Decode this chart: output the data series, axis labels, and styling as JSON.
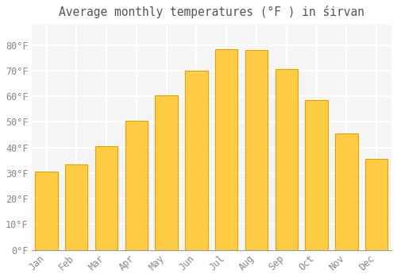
{
  "title": "Average monthly temperatures (°F ) in śirvan",
  "months": [
    "Jan",
    "Feb",
    "Mar",
    "Apr",
    "May",
    "Jun",
    "Jul",
    "Aug",
    "Sep",
    "Oct",
    "Nov",
    "Dec"
  ],
  "values": [
    30.5,
    33.5,
    40.5,
    50.5,
    60.5,
    70,
    78.5,
    78,
    70.5,
    58.5,
    45.5,
    35.5
  ],
  "bar_color_top": "#FFB300",
  "bar_color_bottom": "#FFCC44",
  "bar_edge_color": "#E8A000",
  "background_color": "#FFFFFF",
  "plot_bg_color": "#F5F5F5",
  "grid_color": "#FFFFFF",
  "text_color": "#888888",
  "title_color": "#555555",
  "ylim": [
    0,
    88
  ],
  "yticks": [
    0,
    10,
    20,
    30,
    40,
    50,
    60,
    70,
    80
  ],
  "ytick_labels": [
    "0°F",
    "10°F",
    "20°F",
    "30°F",
    "40°F",
    "50°F",
    "60°F",
    "70°F",
    "80°F"
  ],
  "title_fontsize": 10.5,
  "tick_fontsize": 8.5
}
